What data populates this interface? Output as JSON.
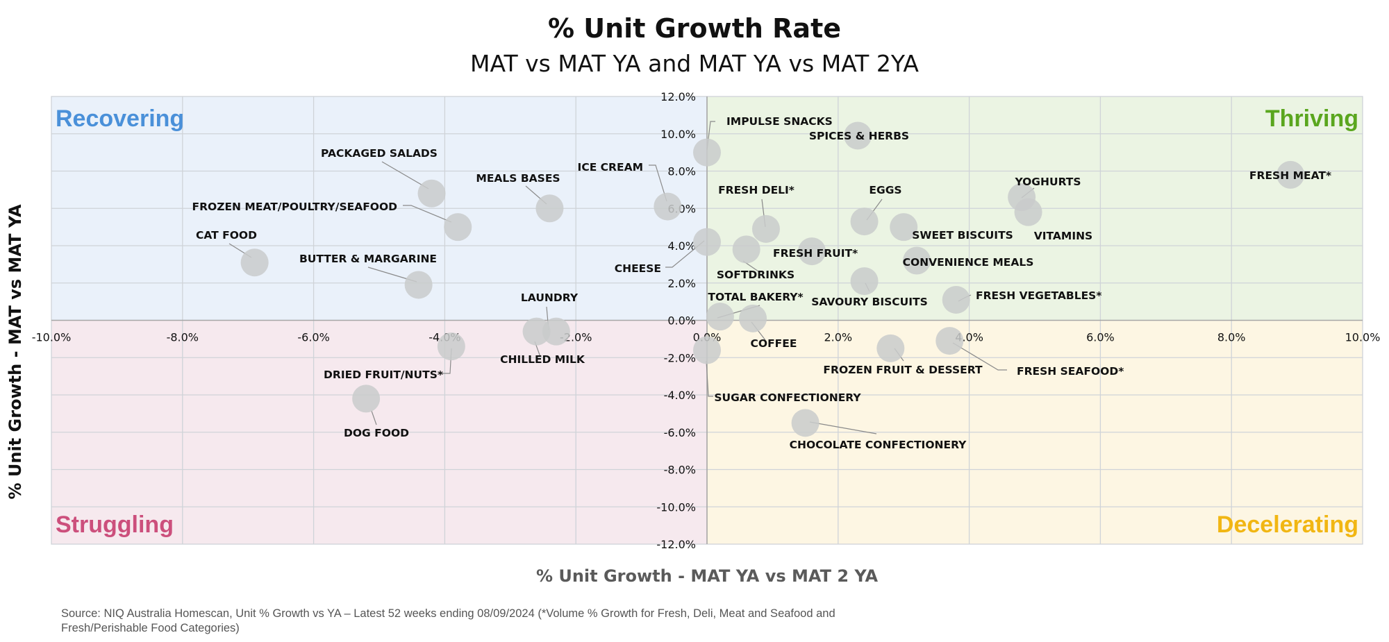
{
  "chart_data": {
    "type": "scatter",
    "title": "% Unit Growth Rate",
    "subtitle": "MAT vs MAT YA and MAT YA vs MAT 2YA",
    "xlabel": "% Unit Growth - MAT YA vs MAT 2 YA",
    "ylabel": "% Unit Growth - MAT vs MAT YA",
    "xlim": [
      -10,
      10
    ],
    "ylim": [
      -12,
      12
    ],
    "x_ticks": [
      "-10.0%",
      "-8.0%",
      "-6.0%",
      "-4.0%",
      "-2.0%",
      "0.0%",
      "2.0%",
      "4.0%",
      "6.0%",
      "8.0%",
      "10.0%"
    ],
    "y_ticks": [
      "12.0%",
      "10.0%",
      "8.0%",
      "6.0%",
      "4.0%",
      "2.0%",
      "0.0%",
      "-2.0%",
      "-4.0%",
      "-6.0%",
      "-8.0%",
      "-10.0%",
      "-12.0%"
    ],
    "grid": true,
    "quadrants": [
      {
        "name": "Recovering",
        "color": "#4a90d9",
        "fill": "#eaf1fa",
        "position": "top-left"
      },
      {
        "name": "Thriving",
        "color": "#5aa61e",
        "fill": "#ebf4e3",
        "position": "top-right"
      },
      {
        "name": "Struggling",
        "color": "#cc4f7c",
        "fill": "#f6e9ee",
        "position": "bottom-left"
      },
      {
        "name": "Decelerating",
        "color": "#f1b613",
        "fill": "#fdf6e3",
        "position": "bottom-right"
      }
    ],
    "points": [
      {
        "label": "IMPULSE SNACKS",
        "x": 0.0,
        "y": 9.0
      },
      {
        "label": "SPICES & HERBS",
        "x": 2.3,
        "y": 9.9
      },
      {
        "label": "FRESH MEAT*",
        "x": 8.9,
        "y": 7.8
      },
      {
        "label": "ICE CREAM",
        "x": -0.6,
        "y": 6.1
      },
      {
        "label": "MEALS BASES",
        "x": -2.4,
        "y": 6.0
      },
      {
        "label": "PACKAGED SALADS",
        "x": -4.2,
        "y": 6.8
      },
      {
        "label": "FROZEN MEAT/POULTRY/SEAFOOD",
        "x": -3.8,
        "y": 5.0
      },
      {
        "label": "CAT FOOD",
        "x": -6.9,
        "y": 3.1
      },
      {
        "label": "BUTTER & MARGARINE",
        "x": -4.4,
        "y": 1.9
      },
      {
        "label": "YOGHURTS",
        "x": 4.8,
        "y": 6.6
      },
      {
        "label": "VITAMINS",
        "x": 4.9,
        "y": 5.8
      },
      {
        "label": "FRESH DELI*",
        "x": 0.9,
        "y": 4.9
      },
      {
        "label": "EGGS",
        "x": 2.4,
        "y": 5.3
      },
      {
        "label": "SWEET BISCUITS",
        "x": 3.0,
        "y": 5.0
      },
      {
        "label": "CHEESE",
        "x": 0.0,
        "y": 4.2
      },
      {
        "label": "SOFTDRINKS",
        "x": 0.6,
        "y": 3.8
      },
      {
        "label": "FRESH FRUIT*",
        "x": 1.6,
        "y": 3.7
      },
      {
        "label": "CONVENIENCE MEALS",
        "x": 3.2,
        "y": 3.2
      },
      {
        "label": "SAVOURY BISCUITS",
        "x": 2.4,
        "y": 2.1
      },
      {
        "label": "FRESH VEGETABLES*",
        "x": 3.8,
        "y": 1.1
      },
      {
        "label": "TOTAL BAKERY*",
        "x": 0.2,
        "y": 0.2
      },
      {
        "label": "COFFEE",
        "x": 0.7,
        "y": 0.1
      },
      {
        "label": "LAUNDRY",
        "x": -2.3,
        "y": -0.6
      },
      {
        "label": "CHILLED MILK",
        "x": -2.6,
        "y": -0.6
      },
      {
        "label": "DRIED FRUIT/NUTS*",
        "x": -3.9,
        "y": -1.4
      },
      {
        "label": "FROZEN FRUIT & DESSERT",
        "x": 2.8,
        "y": -1.5
      },
      {
        "label": "FRESH SEAFOOD*",
        "x": 3.7,
        "y": -1.1
      },
      {
        "label": "SUGAR CONFECTIONERY",
        "x": 0.0,
        "y": -1.6
      },
      {
        "label": "DOG FOOD",
        "x": -5.2,
        "y": -4.2
      },
      {
        "label": "CHOCOLATE CONFECTIONERY",
        "x": 1.5,
        "y": -5.5
      }
    ]
  },
  "source": {
    "line1": "Source: NIQ Australia Homescan, Unit % Growth vs YA – Latest 52 weeks ending 08/09/2024 (*Volume % Growth for Fresh, Deli, Meat and Seafood and",
    "line2": "Fresh/Perishable Food Categories)"
  },
  "colors": {
    "bubble": "#c9cbcb",
    "bubble_opacity": 0.85
  }
}
